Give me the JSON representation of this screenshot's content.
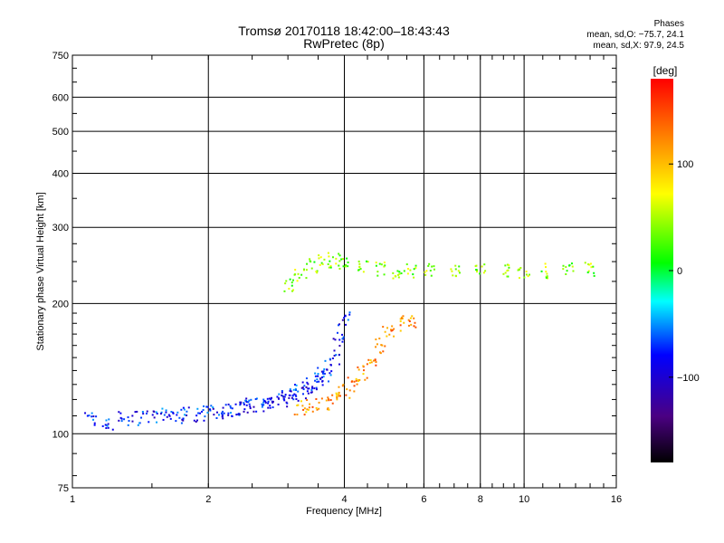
{
  "chart_data": {
    "type": "scatter",
    "title": "Tromsø 20170118 18:42:00–18:43:43",
    "subtitle": "RwPretec (8p)",
    "xlabel": "Frequency [MHz]",
    "ylabel": "Stationary phase Virtual Height [km]",
    "x_scale": "log",
    "y_scale": "log",
    "xlim": [
      1,
      16
    ],
    "ylim": [
      75,
      750
    ],
    "x_ticks": [
      1,
      2,
      4,
      6,
      8,
      10,
      16
    ],
    "x_tick_labels": [
      "1",
      "2",
      "4",
      "6",
      "8",
      "10",
      "16"
    ],
    "y_ticks": [
      75,
      100,
      200,
      300,
      400,
      500,
      600,
      750
    ],
    "y_tick_labels": [
      "75",
      "100",
      "200",
      "300",
      "400",
      "500",
      "600",
      "750"
    ],
    "grid": true,
    "colorbar": {
      "label": "[deg]",
      "range": [
        -180,
        180
      ],
      "ticks": [
        100,
        0,
        -100
      ],
      "tick_labels": [
        "100",
        "0",
        "−100"
      ],
      "colormap": "rainbow"
    },
    "stats": {
      "heading": "Phases",
      "o_mode": "mean, sd,O: −75.7, 24.1",
      "x_mode": "mean, sd,X: 97.9, 24.5"
    },
    "series": [
      {
        "trace": "low-band trace (cyan/blue)",
        "points": [
          [
            1.1,
            108
          ],
          [
            1.2,
            106
          ],
          [
            1.3,
            108
          ],
          [
            1.4,
            109
          ],
          [
            1.5,
            109
          ],
          [
            1.6,
            110
          ],
          [
            1.7,
            110
          ],
          [
            1.8,
            111
          ],
          [
            1.9,
            111
          ],
          [
            2.0,
            112
          ],
          [
            2.1,
            113
          ],
          [
            2.2,
            114
          ],
          [
            2.3,
            114
          ],
          [
            2.4,
            115
          ],
          [
            2.5,
            116
          ],
          [
            2.6,
            117
          ],
          [
            2.7,
            118
          ],
          [
            2.8,
            119
          ],
          [
            2.9,
            120
          ],
          [
            3.0,
            122
          ],
          [
            3.1,
            123
          ],
          [
            3.2,
            125
          ],
          [
            3.3,
            128
          ],
          [
            3.4,
            130
          ],
          [
            3.5,
            133
          ],
          [
            3.6,
            137
          ],
          [
            3.7,
            142
          ],
          [
            3.8,
            150
          ],
          [
            3.9,
            165
          ],
          [
            4.0,
            185
          ]
        ],
        "phase": -80
      },
      {
        "trace": "upper-band trace (orange/yellow)",
        "points": [
          [
            3.2,
            115
          ],
          [
            3.4,
            116
          ],
          [
            3.6,
            118
          ],
          [
            3.8,
            121
          ],
          [
            4.0,
            125
          ],
          [
            4.2,
            130
          ],
          [
            4.4,
            138
          ],
          [
            4.6,
            148
          ],
          [
            4.8,
            160
          ],
          [
            5.0,
            172
          ],
          [
            5.3,
            180
          ],
          [
            5.6,
            182
          ]
        ],
        "phase": 120
      },
      {
        "trace": "F-layer spread (mixed)",
        "points": [
          [
            3.0,
            220
          ],
          [
            3.2,
            235
          ],
          [
            3.4,
            245
          ],
          [
            3.6,
            250
          ],
          [
            3.8,
            252
          ],
          [
            4.0,
            250
          ],
          [
            4.4,
            245
          ],
          [
            4.8,
            240
          ],
          [
            5.2,
            238
          ],
          [
            5.6,
            238
          ],
          [
            6.2,
            238
          ],
          [
            7.0,
            238
          ],
          [
            8.0,
            238
          ],
          [
            9.0,
            238
          ],
          [
            10.0,
            238
          ],
          [
            11.0,
            238
          ],
          [
            12.5,
            240
          ],
          [
            14.0,
            240
          ]
        ],
        "phase": 40
      }
    ]
  }
}
